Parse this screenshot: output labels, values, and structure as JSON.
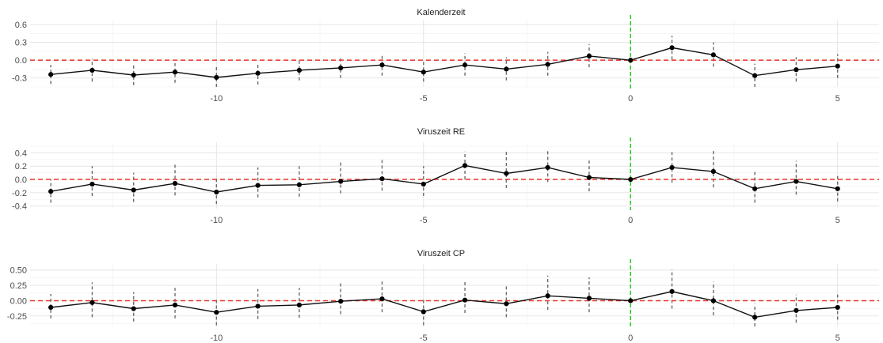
{
  "colors": {
    "line": "#111111",
    "point": "#000000",
    "errorbar": "#6b6b6b",
    "zero_line": "#e8332a",
    "event_line": "#22cc22",
    "grid": "#e3e3e3"
  },
  "chart_data": [
    {
      "type": "line",
      "title": "Kalenderzeit",
      "xlabel": "",
      "ylabel": "",
      "xlim": [
        -14.5,
        6
      ],
      "ylim": [
        -0.45,
        0.68
      ],
      "x_ticks": [
        -10,
        -5,
        0,
        5
      ],
      "x_tick_labels": [
        "-10",
        "-5",
        "0",
        "5"
      ],
      "y_ticks": [
        -0.3,
        0.0,
        0.3,
        0.6
      ],
      "y_tick_labels": [
        "-0.3",
        "0.0",
        "0.3",
        "0.6"
      ],
      "grid": true,
      "reference_lines": {
        "horizontal": 0,
        "vertical": 0
      },
      "series": [
        {
          "x": [
            -14,
            -13,
            -12,
            -11,
            -10,
            -9,
            -8,
            -7,
            -6,
            -5,
            -4,
            -3,
            -2,
            -1,
            0,
            1,
            2,
            3,
            4,
            5
          ],
          "y": [
            -0.24,
            -0.17,
            -0.25,
            -0.2,
            -0.29,
            -0.22,
            -0.17,
            -0.13,
            -0.08,
            -0.2,
            -0.08,
            -0.15,
            -0.07,
            0.07,
            0.0,
            0.21,
            0.09,
            -0.26,
            -0.16,
            -0.1
          ],
          "lower": [
            -0.4,
            -0.36,
            -0.42,
            -0.38,
            -0.45,
            -0.41,
            -0.34,
            -0.3,
            -0.26,
            -0.36,
            -0.26,
            -0.34,
            -0.26,
            -0.12,
            0.0,
            0.01,
            -0.11,
            -0.45,
            -0.36,
            -0.3
          ],
          "upper": [
            -0.08,
            0.02,
            -0.06,
            -0.01,
            -0.11,
            -0.05,
            0.01,
            0.05,
            0.11,
            -0.03,
            0.12,
            0.05,
            0.14,
            0.27,
            0.0,
            0.41,
            0.3,
            -0.06,
            0.05,
            0.1
          ]
        }
      ]
    },
    {
      "type": "line",
      "title": "Viruszeit RE",
      "xlabel": "",
      "ylabel": "",
      "xlim": [
        -14.5,
        6
      ],
      "ylim": [
        -0.44,
        0.56
      ],
      "x_ticks": [
        -10,
        -5,
        0,
        5
      ],
      "x_tick_labels": [
        "-10",
        "-5",
        "0",
        "5"
      ],
      "y_ticks": [
        -0.4,
        -0.2,
        0.0,
        0.2,
        0.4
      ],
      "y_tick_labels": [
        "-0.4",
        "-0.2",
        "0.0",
        "0.2",
        "0.4"
      ],
      "grid": true,
      "reference_lines": {
        "horizontal": 0,
        "vertical": 0
      },
      "series": [
        {
          "x": [
            -14,
            -13,
            -12,
            -11,
            -10,
            -9,
            -8,
            -7,
            -6,
            -5,
            -4,
            -3,
            -2,
            -1,
            0,
            1,
            2,
            3,
            4,
            5
          ],
          "y": [
            -0.18,
            -0.07,
            -0.16,
            -0.06,
            -0.19,
            -0.09,
            -0.08,
            -0.03,
            0.01,
            -0.07,
            0.21,
            0.09,
            0.18,
            0.03,
            0.0,
            0.18,
            0.12,
            -0.14,
            -0.03,
            -0.14
          ],
          "lower": [
            -0.35,
            -0.25,
            -0.34,
            -0.24,
            -0.37,
            -0.27,
            -0.26,
            -0.21,
            -0.17,
            -0.25,
            0.0,
            -0.13,
            -0.04,
            -0.18,
            0.0,
            -0.05,
            -0.12,
            -0.35,
            -0.23,
            -0.33
          ],
          "upper": [
            0.0,
            0.2,
            0.1,
            0.22,
            0.05,
            0.18,
            0.2,
            0.26,
            0.31,
            0.2,
            0.42,
            0.44,
            0.46,
            0.3,
            0.0,
            0.44,
            0.46,
            0.12,
            0.28,
            0.08
          ]
        }
      ]
    },
    {
      "type": "line",
      "title": "Viruszeit CP",
      "xlabel": "",
      "ylabel": "",
      "xlim": [
        -14.5,
        6
      ],
      "ylim": [
        -0.42,
        0.6
      ],
      "x_ticks": [
        -10,
        -5,
        0,
        5
      ],
      "x_tick_labels": [
        "-10",
        "-5",
        "0",
        "5"
      ],
      "y_ticks": [
        -0.25,
        0.0,
        0.25,
        0.5
      ],
      "y_tick_labels": [
        "-0.25",
        "0.00",
        "0.25",
        "0.50"
      ],
      "grid": true,
      "reference_lines": {
        "horizontal": 0,
        "vertical": 0
      },
      "series": [
        {
          "x": [
            -14,
            -13,
            -12,
            -11,
            -10,
            -9,
            -8,
            -7,
            -6,
            -5,
            -4,
            -3,
            -2,
            -1,
            0,
            1,
            2,
            3,
            4,
            5
          ],
          "y": [
            -0.11,
            -0.03,
            -0.13,
            -0.07,
            -0.19,
            -0.09,
            -0.07,
            -0.01,
            0.03,
            -0.18,
            0.01,
            -0.05,
            0.08,
            0.04,
            0.0,
            0.15,
            0.0,
            -0.27,
            -0.16,
            -0.11
          ],
          "lower": [
            -0.29,
            -0.27,
            -0.34,
            -0.29,
            -0.4,
            -0.3,
            -0.28,
            -0.22,
            -0.19,
            -0.4,
            -0.2,
            -0.27,
            -0.15,
            -0.19,
            0.0,
            -0.13,
            -0.24,
            -0.42,
            -0.36,
            -0.31
          ],
          "upper": [
            0.11,
            0.3,
            0.14,
            0.21,
            0.04,
            0.19,
            0.21,
            0.29,
            0.33,
            0.04,
            0.31,
            0.26,
            0.41,
            0.38,
            0.0,
            0.51,
            0.31,
            -0.05,
            0.1,
            0.1
          ]
        }
      ]
    }
  ]
}
